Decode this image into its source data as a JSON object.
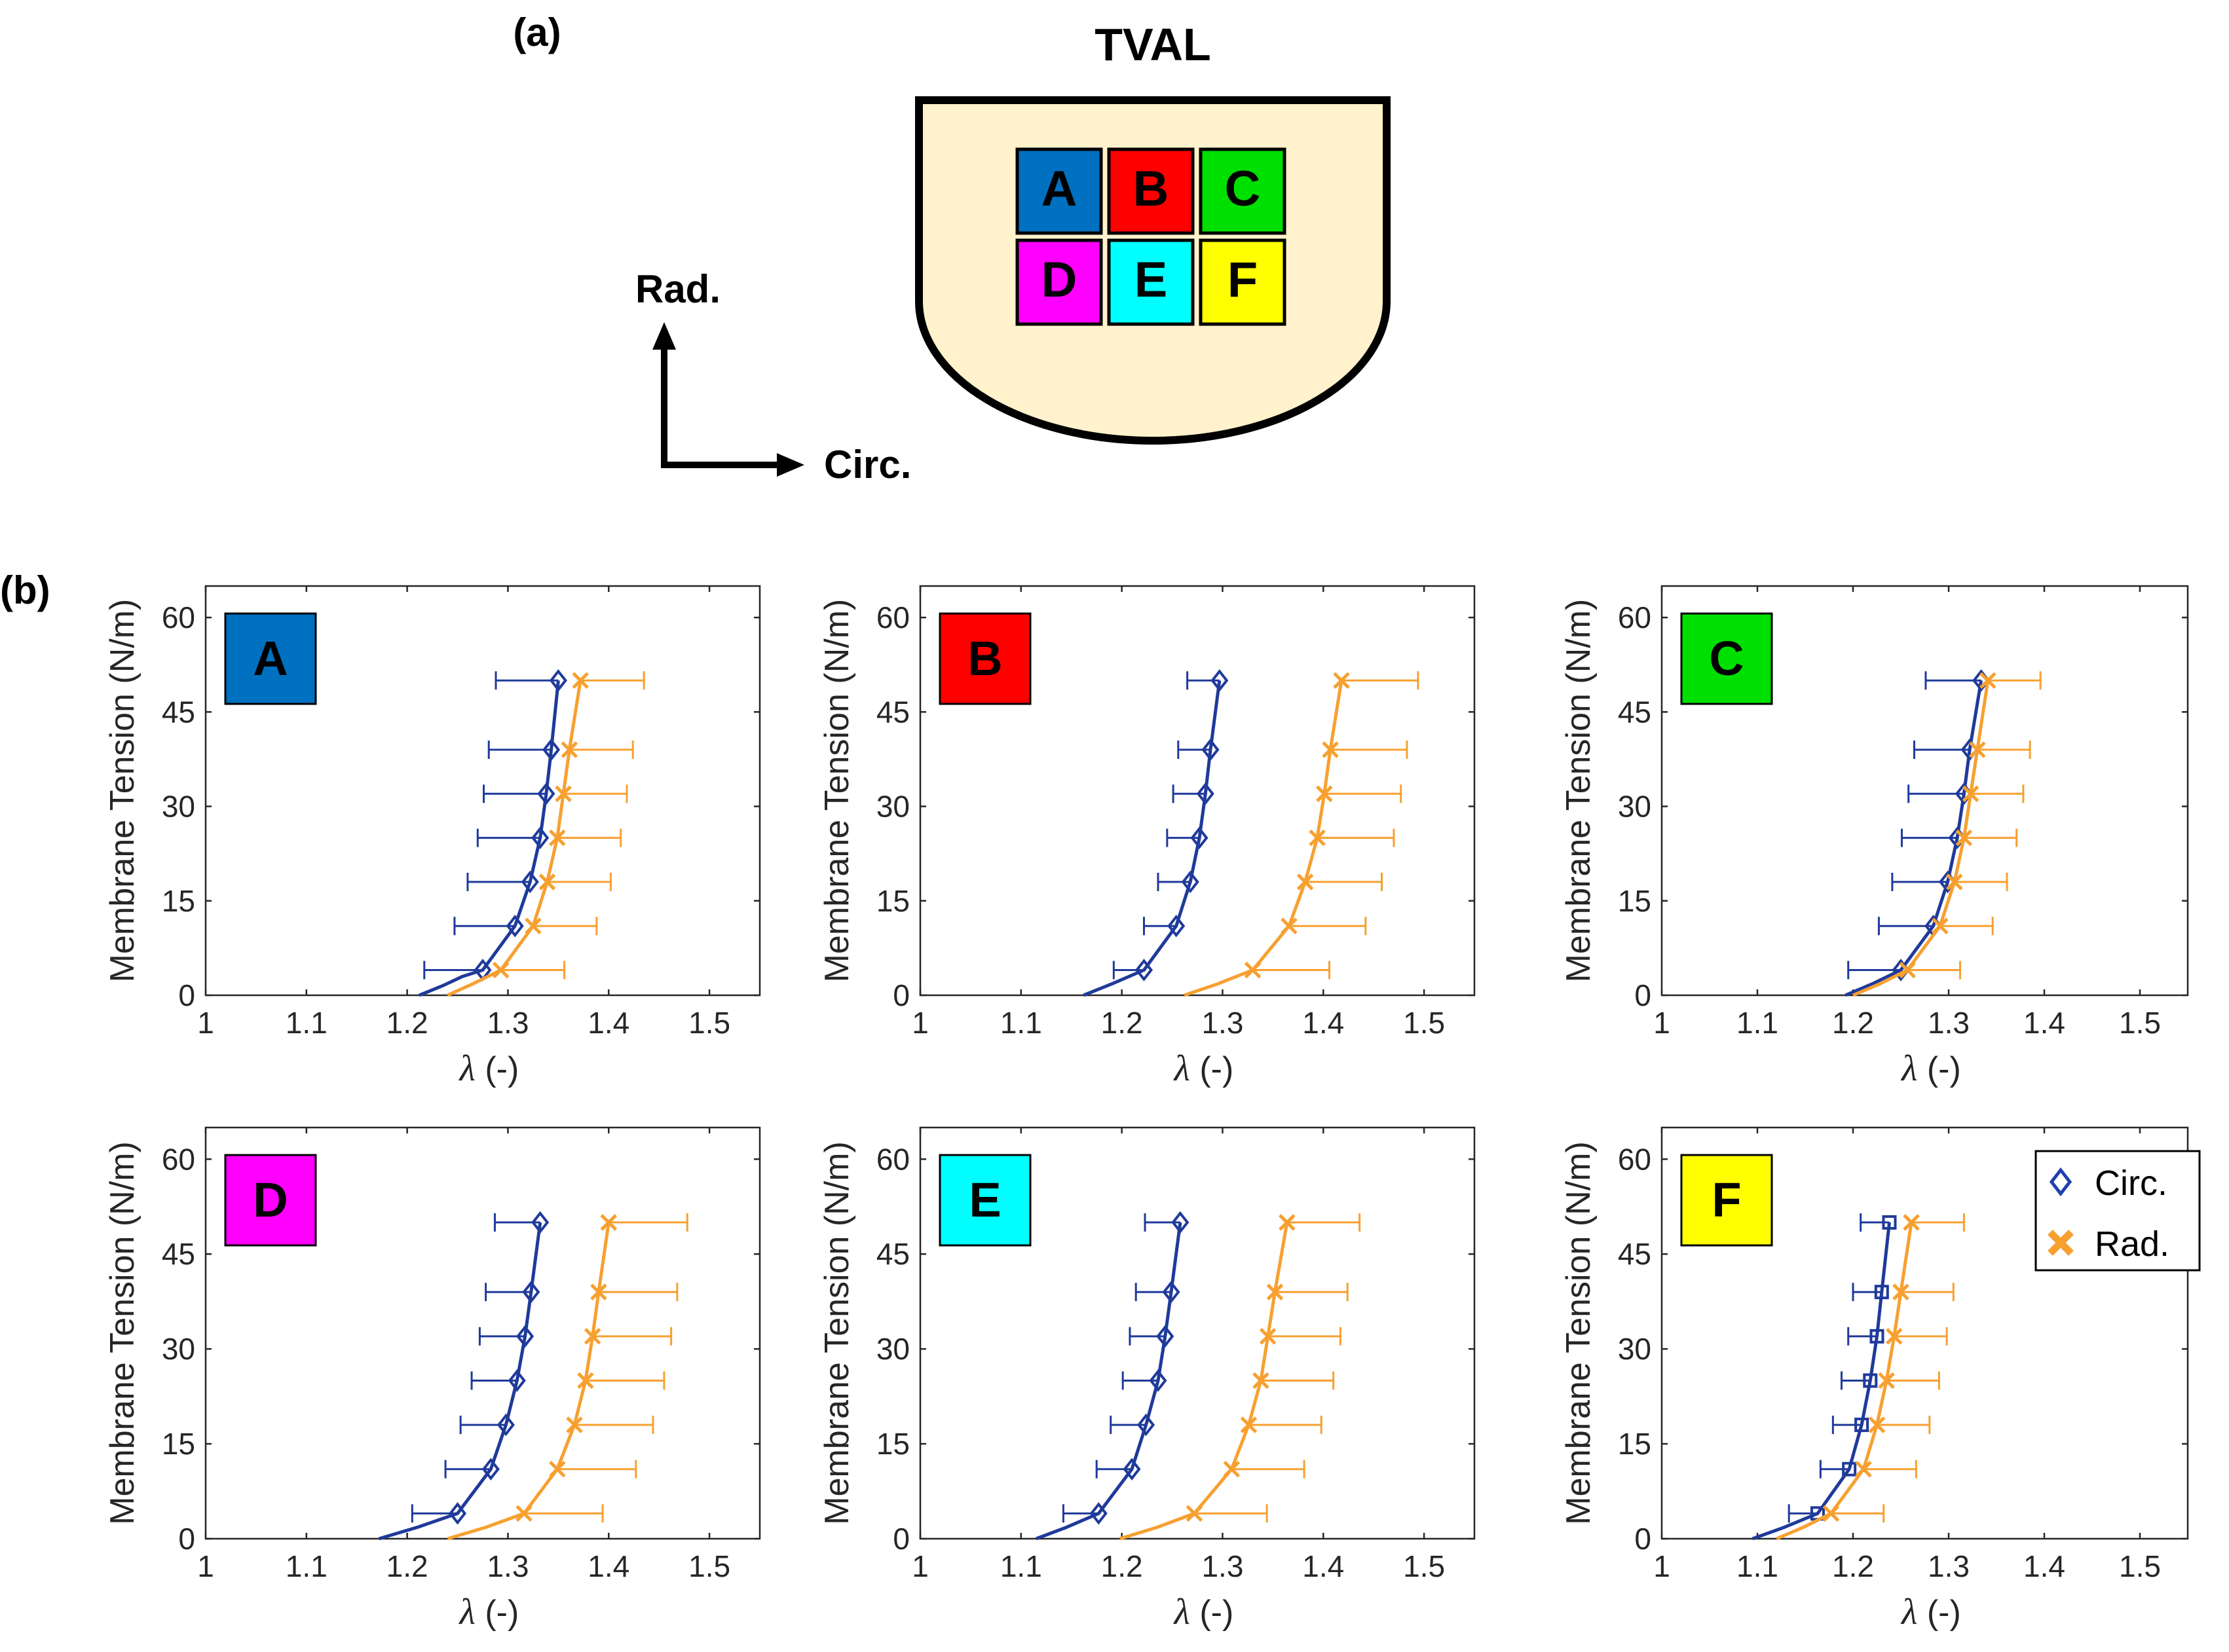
{
  "panel_a": {
    "label": "(a)",
    "title": "TVAL",
    "regions": [
      {
        "letter": "A",
        "color": "#0070C0"
      },
      {
        "letter": "B",
        "color": "#FF0000"
      },
      {
        "letter": "C",
        "color": "#00E000"
      },
      {
        "letter": "D",
        "color": "#FF00FF"
      },
      {
        "letter": "E",
        "color": "#00FFFF"
      },
      {
        "letter": "F",
        "color": "#FFFF00"
      }
    ],
    "arrow_up_label": "Rad.",
    "arrow_right_label": "Circ.",
    "leaflet_fill": "#FFF2CC"
  },
  "panel_b": {
    "label": "(b)"
  },
  "legend": {
    "circ_label": "Circ.",
    "rad_label": "Rad."
  },
  "colors": {
    "circ": "#1F3A9A",
    "rad": "#F7A030"
  },
  "chart_data": [
    {
      "type": "line",
      "region": "A",
      "region_color": "#0070C0",
      "xlabel_symbol": "λ",
      "xlabel_unit": " (-)",
      "ylabel": "Membrane Tension (N/m)",
      "xlim": [
        1,
        1.55
      ],
      "ylim": [
        0,
        65
      ],
      "xticks": [
        1,
        1.1,
        1.2,
        1.3,
        1.4,
        1.5
      ],
      "yticks": [
        0,
        15,
        30,
        45,
        60
      ],
      "tick_labels_x": [
        "1",
        "1.1",
        "1.2",
        "1.3",
        "1.4",
        "1.5"
      ],
      "tick_labels_y": [
        "0",
        "15",
        "30",
        "45",
        "60"
      ],
      "series": [
        {
          "name": "Circ.",
          "marker": "diamond",
          "y": [
            4,
            11,
            18,
            25,
            32,
            39,
            50
          ],
          "x": [
            1.275,
            1.307,
            1.322,
            1.332,
            1.338,
            1.343,
            1.35
          ],
          "err": [
            0.058,
            0.06,
            0.062,
            0.062,
            0.062,
            0.062,
            0.062
          ],
          "fit": [
            [
              1.212,
              0
            ],
            [
              1.235,
              1.5
            ],
            [
              1.255,
              3
            ],
            [
              1.275,
              4
            ],
            [
              1.307,
              11
            ],
            [
              1.322,
              18
            ],
            [
              1.332,
              25
            ],
            [
              1.338,
              32
            ],
            [
              1.343,
              39
            ],
            [
              1.35,
              50
            ]
          ]
        },
        {
          "name": "Rad.",
          "marker": "x",
          "y": [
            4,
            11,
            18,
            25,
            32,
            39,
            50
          ],
          "x": [
            1.293,
            1.325,
            1.339,
            1.349,
            1.355,
            1.361,
            1.372
          ],
          "err": [
            0.063,
            0.063,
            0.063,
            0.063,
            0.063,
            0.063,
            0.063
          ],
          "fit": [
            [
              1.24,
              0
            ],
            [
              1.265,
              1.8
            ],
            [
              1.293,
              4
            ],
            [
              1.325,
              11
            ],
            [
              1.339,
              18
            ],
            [
              1.349,
              25
            ],
            [
              1.355,
              32
            ],
            [
              1.361,
              39
            ],
            [
              1.372,
              50
            ]
          ]
        }
      ]
    },
    {
      "type": "line",
      "region": "B",
      "region_color": "#FF0000",
      "xlabel_symbol": "λ",
      "xlabel_unit": " (-)",
      "ylabel": "Membrane Tension (N/m)",
      "xlim": [
        1,
        1.55
      ],
      "ylim": [
        0,
        65
      ],
      "xticks": [
        1,
        1.1,
        1.2,
        1.3,
        1.4,
        1.5
      ],
      "yticks": [
        0,
        15,
        30,
        45,
        60
      ],
      "tick_labels_x": [
        "1",
        "1.1",
        "1.2",
        "1.3",
        "1.4",
        "1.5"
      ],
      "tick_labels_y": [
        "0",
        "15",
        "30",
        "45",
        "60"
      ],
      "series": [
        {
          "name": "Circ.",
          "marker": "diamond",
          "y": [
            4,
            11,
            18,
            25,
            32,
            39,
            50
          ],
          "x": [
            1.222,
            1.254,
            1.268,
            1.277,
            1.283,
            1.288,
            1.297
          ],
          "err": [
            0.03,
            0.032,
            0.032,
            0.032,
            0.032,
            0.032,
            0.032
          ],
          "fit": [
            [
              1.162,
              0
            ],
            [
              1.19,
              1.8
            ],
            [
              1.222,
              4
            ],
            [
              1.254,
              11
            ],
            [
              1.268,
              18
            ],
            [
              1.277,
              25
            ],
            [
              1.283,
              32
            ],
            [
              1.288,
              39
            ],
            [
              1.297,
              50
            ]
          ]
        },
        {
          "name": "Rad.",
          "marker": "x",
          "y": [
            4,
            11,
            18,
            25,
            32,
            39,
            50
          ],
          "x": [
            1.33,
            1.366,
            1.382,
            1.394,
            1.401,
            1.407,
            1.418
          ],
          "err": [
            0.076,
            0.076,
            0.076,
            0.076,
            0.076,
            0.076,
            0.076
          ],
          "fit": [
            [
              1.262,
              0
            ],
            [
              1.295,
              1.8
            ],
            [
              1.33,
              4
            ],
            [
              1.366,
              11
            ],
            [
              1.382,
              18
            ],
            [
              1.394,
              25
            ],
            [
              1.401,
              32
            ],
            [
              1.407,
              39
            ],
            [
              1.418,
              50
            ]
          ]
        }
      ]
    },
    {
      "type": "line",
      "region": "C",
      "region_color": "#00E000",
      "xlabel_symbol": "λ",
      "xlabel_unit": " (-)",
      "ylabel": "Membrane Tension (N/m)",
      "xlim": [
        1,
        1.55
      ],
      "ylim": [
        0,
        65
      ],
      "xticks": [
        1,
        1.1,
        1.2,
        1.3,
        1.4,
        1.5
      ],
      "yticks": [
        0,
        15,
        30,
        45,
        60
      ],
      "tick_labels_x": [
        "1",
        "1.1",
        "1.2",
        "1.3",
        "1.4",
        "1.5"
      ],
      "tick_labels_y": [
        "0",
        "15",
        "30",
        "45",
        "60"
      ],
      "series": [
        {
          "name": "Circ.",
          "marker": "diamond",
          "y": [
            4,
            11,
            18,
            25,
            32,
            39,
            50
          ],
          "x": [
            1.25,
            1.284,
            1.299,
            1.309,
            1.316,
            1.322,
            1.334
          ],
          "err": [
            0.055,
            0.057,
            0.058,
            0.058,
            0.058,
            0.058,
            0.058
          ],
          "fit": [
            [
              1.192,
              0
            ],
            [
              1.22,
              1.8
            ],
            [
              1.25,
              4
            ],
            [
              1.284,
              11
            ],
            [
              1.299,
              18
            ],
            [
              1.309,
              25
            ],
            [
              1.316,
              32
            ],
            [
              1.322,
              39
            ],
            [
              1.334,
              50
            ]
          ]
        },
        {
          "name": "Rad.",
          "marker": "x",
          "y": [
            4,
            11,
            18,
            25,
            32,
            39,
            50
          ],
          "x": [
            1.257,
            1.291,
            1.306,
            1.316,
            1.323,
            1.33,
            1.341
          ],
          "err": [
            0.055,
            0.055,
            0.055,
            0.055,
            0.055,
            0.055,
            0.055
          ],
          "fit": [
            [
              1.2,
              0
            ],
            [
              1.228,
              1.8
            ],
            [
              1.257,
              4
            ],
            [
              1.291,
              11
            ],
            [
              1.306,
              18
            ],
            [
              1.316,
              25
            ],
            [
              1.323,
              32
            ],
            [
              1.33,
              39
            ],
            [
              1.341,
              50
            ]
          ]
        }
      ]
    },
    {
      "type": "line",
      "region": "D",
      "region_color": "#FF00FF",
      "xlabel_symbol": "λ",
      "xlabel_unit": " (-)",
      "ylabel": "Membrane Tension (N/m)",
      "xlim": [
        1,
        1.55
      ],
      "ylim": [
        0,
        65
      ],
      "xticks": [
        1,
        1.1,
        1.2,
        1.3,
        1.4,
        1.5
      ],
      "yticks": [
        0,
        15,
        30,
        45,
        60
      ],
      "tick_labels_x": [
        "1",
        "1.1",
        "1.2",
        "1.3",
        "1.4",
        "1.5"
      ],
      "tick_labels_y": [
        "0",
        "15",
        "30",
        "45",
        "60"
      ],
      "series": [
        {
          "name": "Circ.",
          "marker": "diamond",
          "y": [
            4,
            11,
            18,
            25,
            32,
            39,
            50
          ],
          "x": [
            1.25,
            1.283,
            1.298,
            1.309,
            1.317,
            1.323,
            1.332
          ],
          "err": [
            0.045,
            0.045,
            0.045,
            0.045,
            0.045,
            0.045,
            0.045
          ],
          "fit": [
            [
              1.172,
              0
            ],
            [
              1.21,
              1.8
            ],
            [
              1.25,
              4
            ],
            [
              1.283,
              11
            ],
            [
              1.298,
              18
            ],
            [
              1.309,
              25
            ],
            [
              1.317,
              32
            ],
            [
              1.323,
              39
            ],
            [
              1.332,
              50
            ]
          ]
        },
        {
          "name": "Rad.",
          "marker": "x",
          "y": [
            4,
            11,
            18,
            25,
            32,
            39,
            50
          ],
          "x": [
            1.316,
            1.349,
            1.366,
            1.377,
            1.384,
            1.39,
            1.4
          ],
          "err": [
            0.078,
            0.078,
            0.078,
            0.078,
            0.078,
            0.078,
            0.078
          ],
          "fit": [
            [
              1.24,
              0
            ],
            [
              1.278,
              1.8
            ],
            [
              1.316,
              4
            ],
            [
              1.349,
              11
            ],
            [
              1.366,
              18
            ],
            [
              1.377,
              25
            ],
            [
              1.384,
              32
            ],
            [
              1.39,
              39
            ],
            [
              1.4,
              50
            ]
          ]
        }
      ]
    },
    {
      "type": "line",
      "region": "E",
      "region_color": "#00FFFF",
      "xlabel_symbol": "λ",
      "xlabel_unit": " (-)",
      "ylabel": "Membrane Tension (N/m)",
      "xlim": [
        1,
        1.55
      ],
      "ylim": [
        0,
        65
      ],
      "xticks": [
        1,
        1.1,
        1.2,
        1.3,
        1.4,
        1.5
      ],
      "yticks": [
        0,
        15,
        30,
        45,
        60
      ],
      "tick_labels_x": [
        "1",
        "1.1",
        "1.2",
        "1.3",
        "1.4",
        "1.5"
      ],
      "tick_labels_y": [
        "0",
        "15",
        "30",
        "45",
        "60"
      ],
      "series": [
        {
          "name": "Circ.",
          "marker": "diamond",
          "y": [
            4,
            11,
            18,
            25,
            32,
            39,
            50
          ],
          "x": [
            1.177,
            1.21,
            1.224,
            1.236,
            1.243,
            1.249,
            1.258
          ],
          "err": [
            0.035,
            0.035,
            0.035,
            0.035,
            0.035,
            0.035,
            0.035
          ],
          "fit": [
            [
              1.115,
              0
            ],
            [
              1.145,
              1.8
            ],
            [
              1.177,
              4
            ],
            [
              1.21,
              11
            ],
            [
              1.224,
              18
            ],
            [
              1.236,
              25
            ],
            [
              1.243,
              32
            ],
            [
              1.249,
              39
            ],
            [
              1.258,
              50
            ]
          ]
        },
        {
          "name": "Rad.",
          "marker": "x",
          "y": [
            4,
            11,
            18,
            25,
            32,
            39,
            50
          ],
          "x": [
            1.272,
            1.309,
            1.326,
            1.338,
            1.345,
            1.352,
            1.364
          ],
          "err": [
            0.072,
            0.072,
            0.072,
            0.072,
            0.072,
            0.072,
            0.072
          ],
          "fit": [
            [
              1.198,
              0
            ],
            [
              1.235,
              1.8
            ],
            [
              1.272,
              4
            ],
            [
              1.309,
              11
            ],
            [
              1.326,
              18
            ],
            [
              1.338,
              25
            ],
            [
              1.345,
              32
            ],
            [
              1.352,
              39
            ],
            [
              1.364,
              50
            ]
          ]
        }
      ]
    },
    {
      "type": "line",
      "region": "F",
      "region_color": "#FFFF00",
      "xlabel_symbol": "λ",
      "xlabel_unit": " (-)",
      "ylabel": "Membrane Tension (N/m)",
      "xlim": [
        1,
        1.55
      ],
      "ylim": [
        0,
        65
      ],
      "xticks": [
        1,
        1.1,
        1.2,
        1.3,
        1.4,
        1.5
      ],
      "yticks": [
        0,
        15,
        30,
        45,
        60
      ],
      "tick_labels_x": [
        "1",
        "1.1",
        "1.2",
        "1.3",
        "1.4",
        "1.5"
      ],
      "tick_labels_y": [
        "0",
        "15",
        "30",
        "45",
        "60"
      ],
      "legend": true,
      "series": [
        {
          "name": "Circ.",
          "marker": "square",
          "y": [
            4,
            11,
            18,
            25,
            32,
            39,
            50
          ],
          "x": [
            1.163,
            1.196,
            1.209,
            1.218,
            1.225,
            1.23,
            1.238
          ],
          "err": [
            0.03,
            0.03,
            0.03,
            0.03,
            0.03,
            0.03,
            0.03
          ],
          "fit": [
            [
              1.095,
              0
            ],
            [
              1.128,
              1.8
            ],
            [
              1.163,
              4
            ],
            [
              1.196,
              11
            ],
            [
              1.209,
              18
            ],
            [
              1.218,
              25
            ],
            [
              1.225,
              32
            ],
            [
              1.23,
              39
            ],
            [
              1.238,
              50
            ]
          ]
        },
        {
          "name": "Rad.",
          "marker": "x",
          "y": [
            4,
            11,
            18,
            25,
            32,
            39,
            50
          ],
          "x": [
            1.177,
            1.211,
            1.225,
            1.235,
            1.243,
            1.25,
            1.261
          ],
          "err": [
            0.055,
            0.055,
            0.055,
            0.055,
            0.055,
            0.055,
            0.055
          ],
          "fit": [
            [
              1.12,
              0
            ],
            [
              1.148,
              1.8
            ],
            [
              1.177,
              4
            ],
            [
              1.211,
              11
            ],
            [
              1.225,
              18
            ],
            [
              1.235,
              25
            ],
            [
              1.243,
              32
            ],
            [
              1.25,
              39
            ],
            [
              1.261,
              50
            ]
          ]
        }
      ]
    }
  ]
}
